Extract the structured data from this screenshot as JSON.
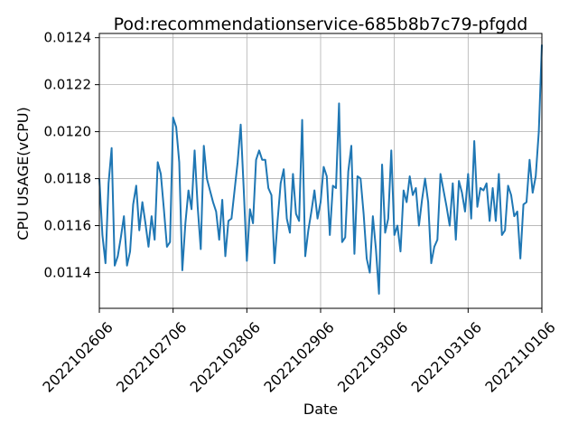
{
  "chart_data": {
    "type": "line",
    "title": "Pod:recommendationservice-685b8b7c79-pfgdd",
    "xlabel": "Date",
    "ylabel": "CPU USAGE(vCPU)",
    "grid": true,
    "line_color": "#1f77b4",
    "x_ticks": [
      "2022102606",
      "2022102706",
      "2022102806",
      "2022102906",
      "2022103006",
      "2022103106",
      "2022110106"
    ],
    "y_ticks": [
      "0.0114",
      "0.0116",
      "0.0118",
      "0.0120",
      "0.0122",
      "0.0124"
    ],
    "xlim": [
      0,
      144
    ],
    "ylim": [
      0.011248,
      0.012418
    ],
    "series": [
      {
        "values": [
          0.0118,
          0.01156,
          0.01144,
          0.01178,
          0.01193,
          0.01143,
          0.01147,
          0.01155,
          0.01164,
          0.01143,
          0.01149,
          0.01169,
          0.01177,
          0.01158,
          0.0117,
          0.01161,
          0.01151,
          0.01164,
          0.01154,
          0.01187,
          0.01182,
          0.01167,
          0.01151,
          0.01153,
          0.01206,
          0.01202,
          0.01187,
          0.01141,
          0.01161,
          0.01175,
          0.01167,
          0.01192,
          0.01168,
          0.0115,
          0.01194,
          0.0118,
          0.01175,
          0.0117,
          0.01166,
          0.01154,
          0.01171,
          0.01147,
          0.01162,
          0.01163,
          0.01175,
          0.01187,
          0.01203,
          0.01175,
          0.01145,
          0.01167,
          0.01161,
          0.01188,
          0.01192,
          0.01188,
          0.01188,
          0.01176,
          0.01173,
          0.01144,
          0.01162,
          0.01178,
          0.01184,
          0.01163,
          0.01157,
          0.01182,
          0.01165,
          0.01162,
          0.01205,
          0.01147,
          0.01158,
          0.01166,
          0.01175,
          0.01163,
          0.0117,
          0.01185,
          0.01181,
          0.01156,
          0.01177,
          0.01176,
          0.01212,
          0.01153,
          0.01155,
          0.01183,
          0.01194,
          0.01148,
          0.01181,
          0.0118,
          0.01165,
          0.01146,
          0.0114,
          0.01164,
          0.0115,
          0.01131,
          0.01186,
          0.01157,
          0.01163,
          0.01192,
          0.01156,
          0.0116,
          0.01149,
          0.01175,
          0.0117,
          0.01181,
          0.01173,
          0.01176,
          0.0116,
          0.01171,
          0.0118,
          0.0117,
          0.01144,
          0.01151,
          0.01154,
          0.01182,
          0.01175,
          0.01168,
          0.0116,
          0.01178,
          0.01154,
          0.01179,
          0.01174,
          0.01166,
          0.01182,
          0.01163,
          0.01196,
          0.01168,
          0.01176,
          0.01175,
          0.01178,
          0.01162,
          0.01176,
          0.01162,
          0.01182,
          0.01156,
          0.01158,
          0.01177,
          0.01173,
          0.01164,
          0.01166,
          0.01146,
          0.01169,
          0.0117,
          0.01188,
          0.01174,
          0.01181,
          0.012,
          0.01237
        ]
      }
    ]
  }
}
